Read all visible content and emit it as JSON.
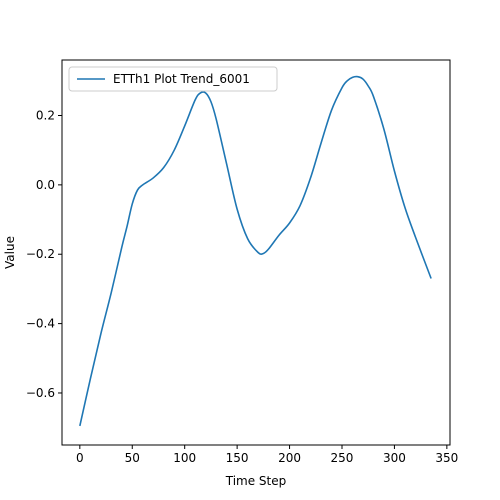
{
  "chart_data": {
    "type": "line",
    "title": "",
    "xlabel": "Time Step",
    "ylabel": "Value",
    "xlim": [
      -17,
      353
    ],
    "ylim": [
      -0.75,
      0.36
    ],
    "x_ticks": [
      0,
      50,
      100,
      150,
      200,
      250,
      300,
      350
    ],
    "x_tick_labels": [
      "0",
      "50",
      "100",
      "150",
      "200",
      "250",
      "300",
      "350"
    ],
    "y_ticks": [
      -0.6,
      -0.4,
      -0.2,
      0.0,
      0.2
    ],
    "y_tick_labels": [
      "−0.6",
      "−0.4",
      "−0.2",
      "0.0",
      "0.2"
    ],
    "grid": false,
    "legend_position": "upper-left",
    "color": "#1f77b4",
    "series": [
      {
        "name": "ETTh1 Plot Trend_6001",
        "x": [
          0,
          10,
          20,
          30,
          40,
          45,
          50,
          55,
          60,
          70,
          80,
          90,
          100,
          110,
          115,
          120,
          125,
          130,
          140,
          150,
          160,
          170,
          175,
          180,
          190,
          200,
          210,
          220,
          230,
          240,
          250,
          255,
          260,
          265,
          270,
          275,
          280,
          290,
          300,
          310,
          320,
          335
        ],
        "y": [
          -0.695,
          -0.56,
          -0.43,
          -0.31,
          -0.18,
          -0.12,
          -0.055,
          -0.015,
          0.0,
          0.02,
          0.05,
          0.1,
          0.17,
          0.245,
          0.265,
          0.265,
          0.24,
          0.19,
          0.06,
          -0.07,
          -0.155,
          -0.195,
          -0.198,
          -0.185,
          -0.145,
          -0.11,
          -0.06,
          0.02,
          0.12,
          0.215,
          0.28,
          0.3,
          0.31,
          0.312,
          0.305,
          0.285,
          0.255,
          0.16,
          0.04,
          -0.065,
          -0.15,
          -0.27
        ]
      }
    ]
  }
}
